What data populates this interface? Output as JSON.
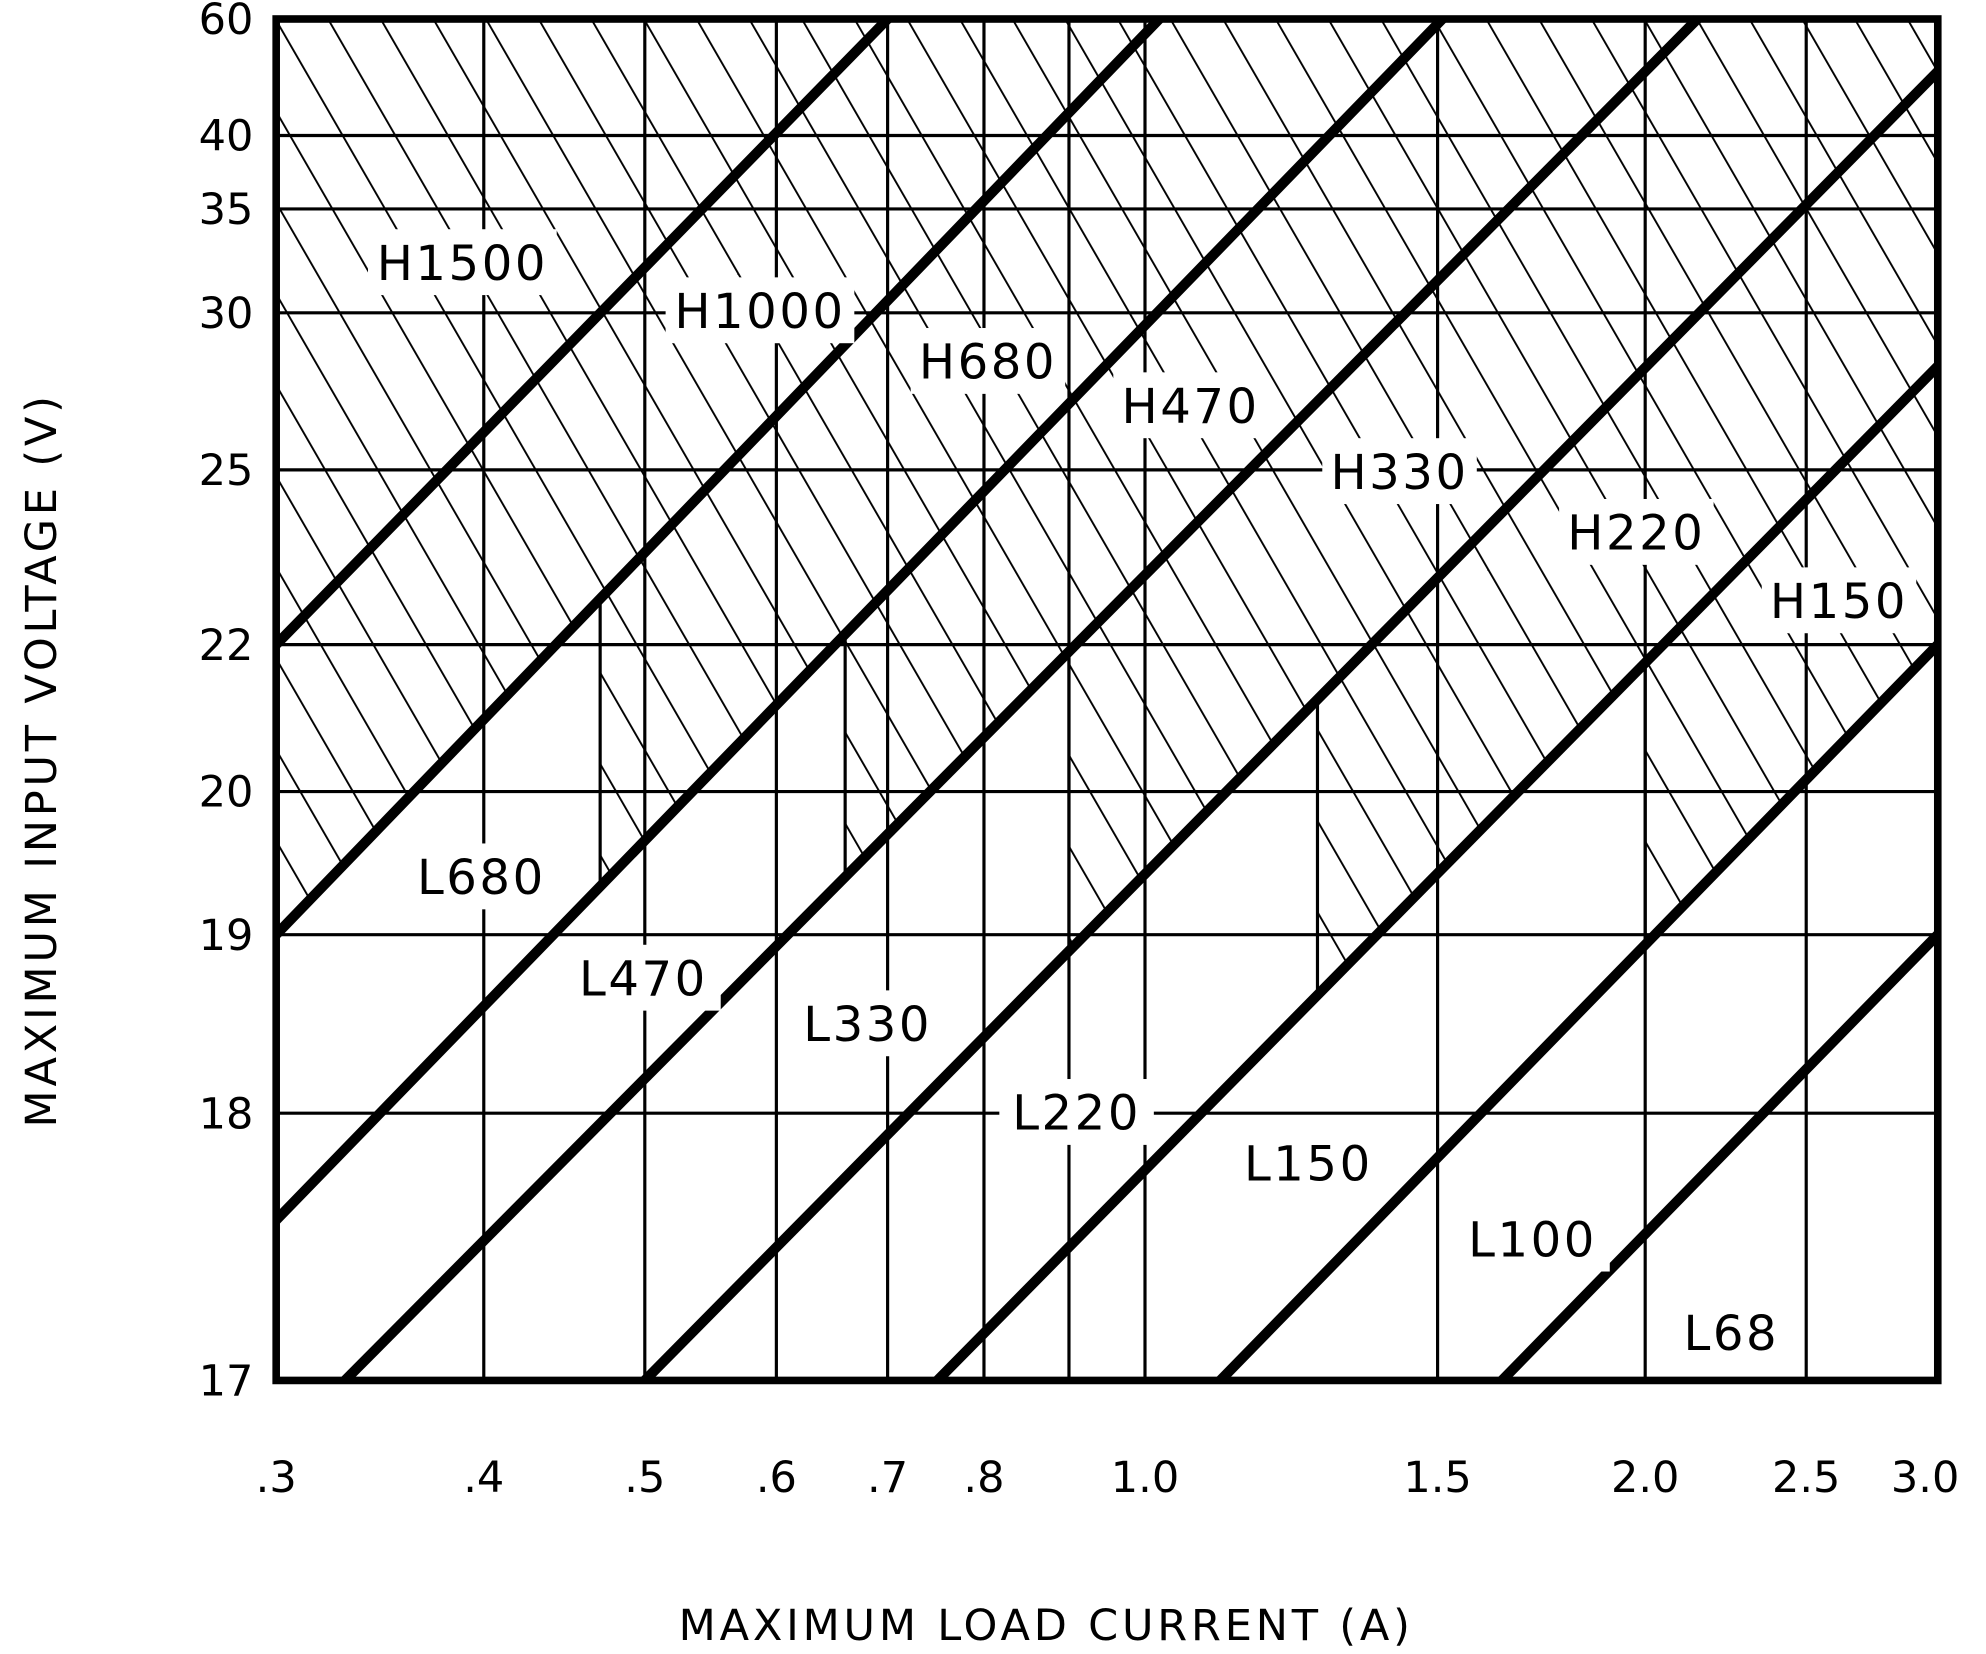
{
  "chart_data": {
    "type": "line",
    "title": "",
    "xlabel": "MAXIMUM LOAD CURRENT (A)",
    "ylabel": "MAXIMUM INPUT VOLTAGE (V)",
    "x_scale": "log",
    "xlim": [
      0.3,
      3.0
    ],
    "ylim": [
      17,
      60
    ],
    "x_ticks": [
      0.3,
      0.4,
      0.5,
      0.6,
      0.7,
      0.8,
      1.0,
      1.5,
      2.0,
      2.5,
      3.0
    ],
    "x_tick_labels": [
      ".3",
      ".4",
      ".5",
      ".6",
      ".7",
      ".8",
      "1.0",
      "1.5",
      "2.0",
      "2.5",
      "3.0"
    ],
    "x_gridlines": [
      0.4,
      0.5,
      0.6,
      0.7,
      0.8,
      0.9,
      1.0,
      1.5,
      2.0,
      2.5
    ],
    "y_ticks": [
      17,
      18,
      19,
      20,
      22,
      25,
      30,
      35,
      40,
      60
    ],
    "y_tick_labels": [
      "17",
      "18",
      "19",
      "20",
      "22",
      "25",
      "30",
      "35",
      "40",
      "60"
    ],
    "grid": true,
    "boundary_lines": [
      {
        "id": "A",
        "points": [
          [
            0.3,
            22
          ],
          [
            0.7,
            60
          ]
        ]
      },
      {
        "id": "B",
        "points": [
          [
            0.3,
            19
          ],
          [
            1.02,
            60
          ]
        ]
      },
      {
        "id": "C",
        "points": [
          [
            0.3,
            17.6
          ],
          [
            1.51,
            60
          ]
        ]
      },
      {
        "id": "D",
        "points": [
          [
            0.33,
            17
          ],
          [
            2.15,
            60
          ]
        ]
      },
      {
        "id": "E",
        "points": [
          [
            0.5,
            17
          ],
          [
            3.0,
            51
          ]
        ]
      },
      {
        "id": "F",
        "points": [
          [
            0.75,
            17
          ],
          [
            3.0,
            28.3
          ]
        ]
      },
      {
        "id": "G",
        "points": [
          [
            1.11,
            17
          ],
          [
            3.0,
            22
          ]
        ]
      },
      {
        "id": "H",
        "points": [
          [
            1.64,
            17
          ],
          [
            3.0,
            19
          ]
        ]
      }
    ],
    "hatched_region": {
      "description_key": "H-series inductor region",
      "lower_boundary": [
        {
          "from": 0.3,
          "to": 0.47,
          "line": "B"
        },
        {
          "from": 0.47,
          "to": 0.66,
          "line": "C"
        },
        {
          "from": 0.66,
          "to": 0.9,
          "line": "D"
        },
        {
          "from": 0.9,
          "to": 1.27,
          "line": "E"
        },
        {
          "from": 1.27,
          "to": 2.0,
          "line": "F"
        },
        {
          "from": 2.0,
          "to": 3.0,
          "line": "G"
        }
      ]
    },
    "annotations": [
      "H1500",
      "H1000",
      "H680",
      "H470",
      "H330",
      "H220",
      "H150",
      "L680",
      "L470",
      "L330",
      "L220",
      "L150",
      "L100",
      "L68"
    ]
  }
}
